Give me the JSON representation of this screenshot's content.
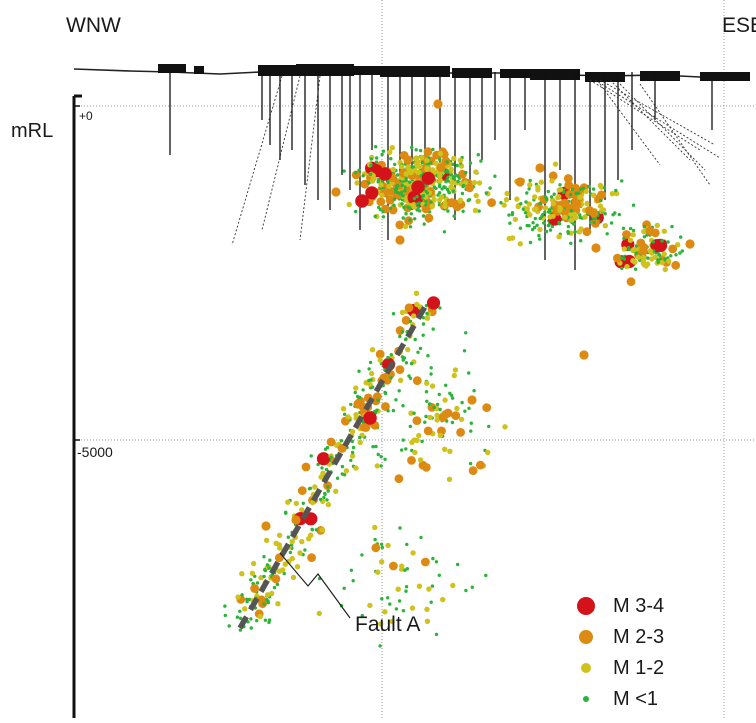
{
  "directions": {
    "left": "WNW",
    "right": "ESE"
  },
  "axis": {
    "unit": "mRL",
    "ticks": [
      "+0",
      "-5000"
    ]
  },
  "annotation": {
    "fault_label": "Fault A"
  },
  "legend": {
    "items": [
      {
        "label": "M 3-4",
        "color": "#d4121a"
      },
      {
        "label": "M 2-3",
        "color": "#dc8a12"
      },
      {
        "label": "M 1-2",
        "color": "#cfc21c"
      },
      {
        "label": "M <1",
        "color": "#2bb33a"
      }
    ]
  },
  "colors": {
    "infrastructure": "#111111",
    "fault_line": "#555555",
    "gridline": "#9a9a9a"
  }
}
